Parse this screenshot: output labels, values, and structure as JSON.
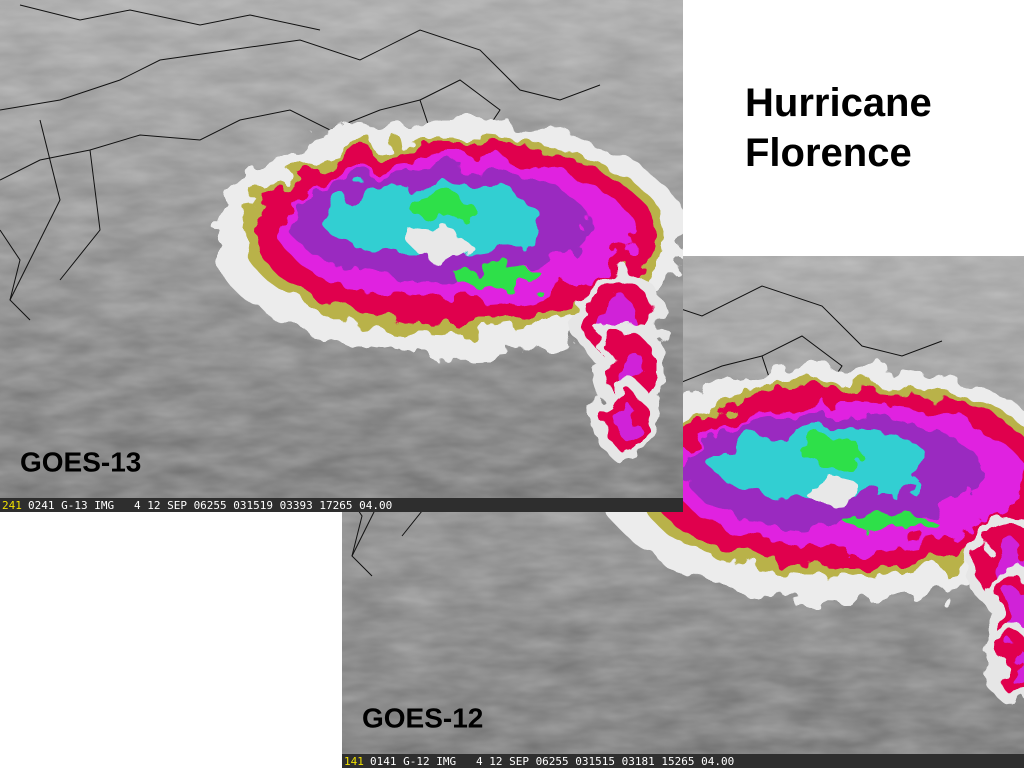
{
  "title_lines": [
    "Hurricane",
    "Florence"
  ],
  "images": [
    {
      "label": "GOES-13",
      "strip_tag": "241",
      "strip_text": "0241 G-13 IMG   4 12 SEP 06255 031519 03393 17265 04.00"
    },
    {
      "label": "GOES-12",
      "strip_tag": "141",
      "strip_text": "0141 G-12 IMG   4 12 SEP 06255 031515 03181 15265 04.00"
    }
  ]
}
